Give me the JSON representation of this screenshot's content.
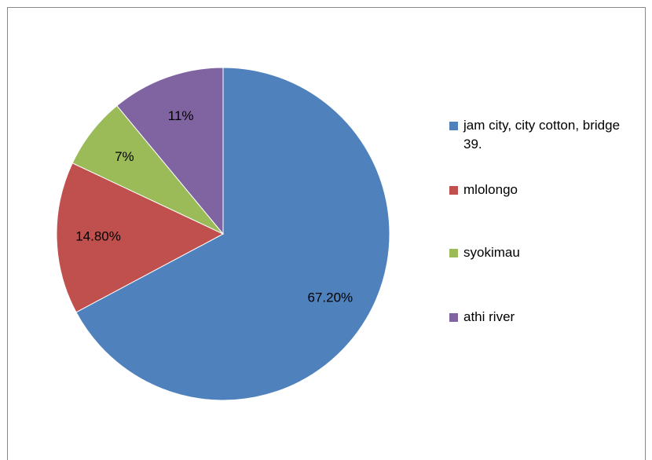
{
  "chart_data": {
    "type": "pie",
    "categories": [
      "jam city, city cotton, bridge 39.",
      "mlolongo",
      "syokimau",
      "athi river"
    ],
    "values": [
      67.2,
      14.8,
      7,
      11
    ],
    "value_labels": [
      "67.20%",
      "14.80%",
      "7%",
      "11%"
    ],
    "colors": [
      "#4f81bd",
      "#c0504d",
      "#9bbb59",
      "#8064a2"
    ],
    "legend": "right"
  }
}
